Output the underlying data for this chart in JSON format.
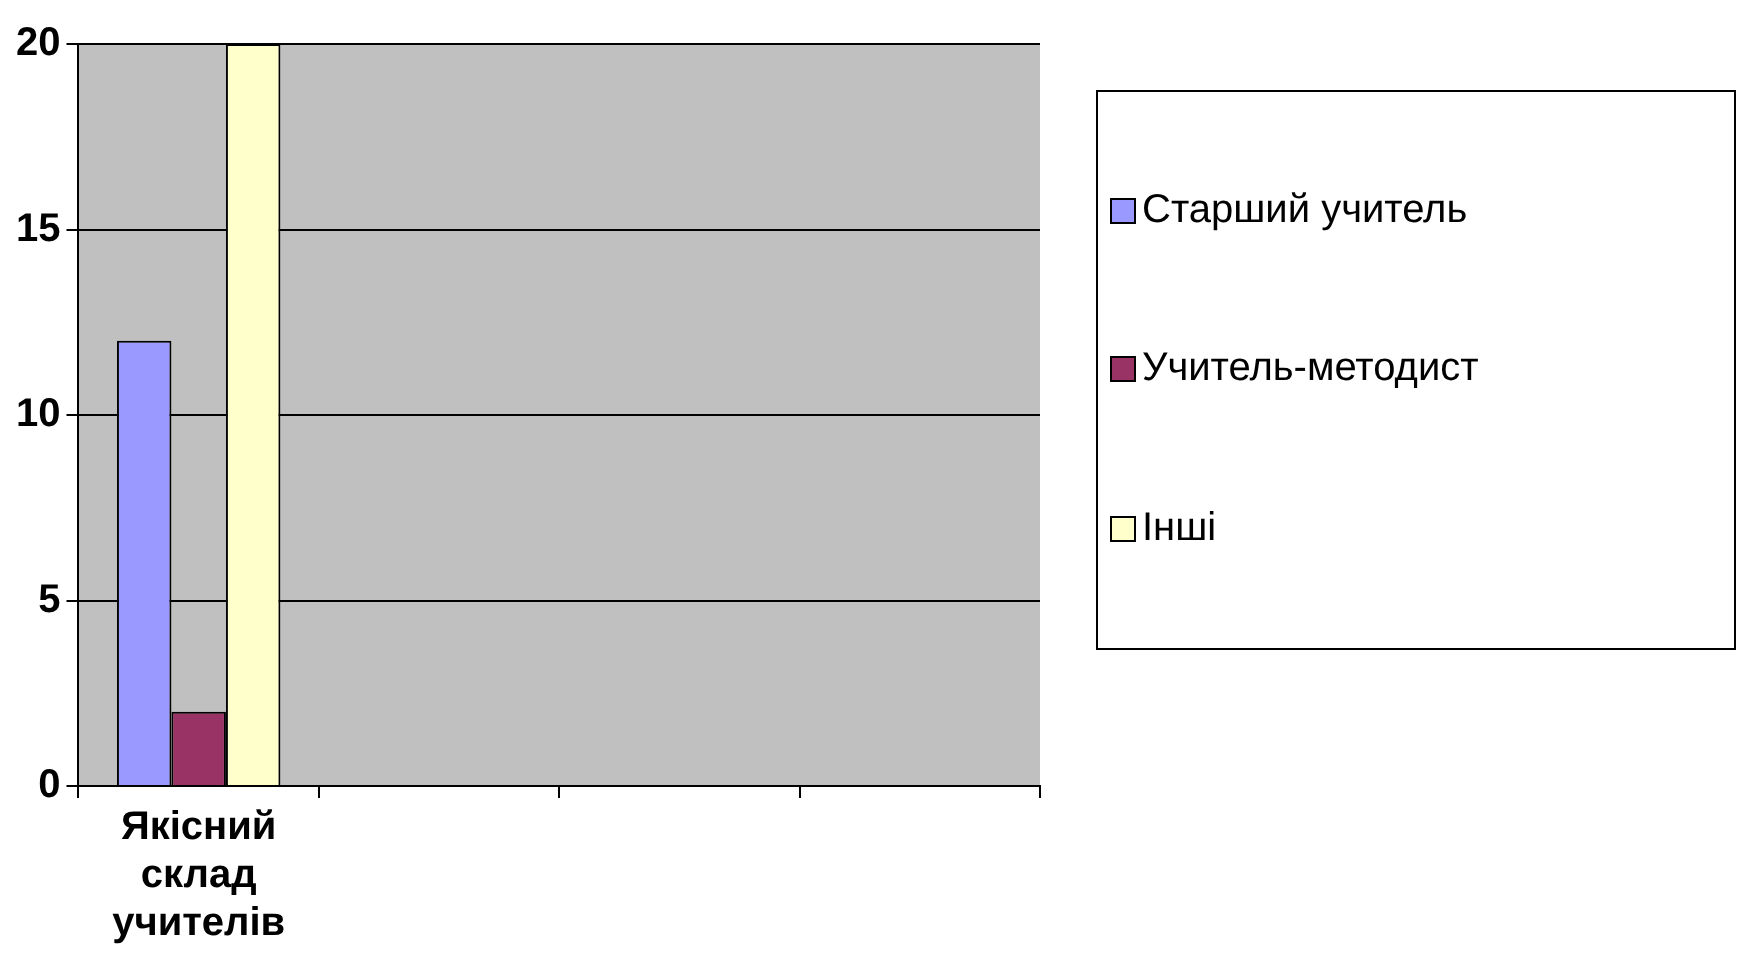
{
  "chart_data": {
    "type": "bar",
    "categories": [
      "Якісний склад учителів",
      null,
      null,
      null
    ],
    "series": [
      {
        "name": "Старший учитель",
        "color": "#9999ff",
        "values": [
          12,
          null,
          null,
          null
        ]
      },
      {
        "name": "Учитель-методист",
        "color": "#993366",
        "values": [
          2,
          null,
          null,
          null
        ]
      },
      {
        "name": "Інші",
        "color": "#ffffcc",
        "values": [
          20,
          null,
          null,
          null
        ]
      }
    ],
    "ylim": [
      0,
      20
    ],
    "yticks": [
      0,
      5,
      10,
      15,
      20
    ],
    "grid": "y",
    "legend": "right"
  }
}
